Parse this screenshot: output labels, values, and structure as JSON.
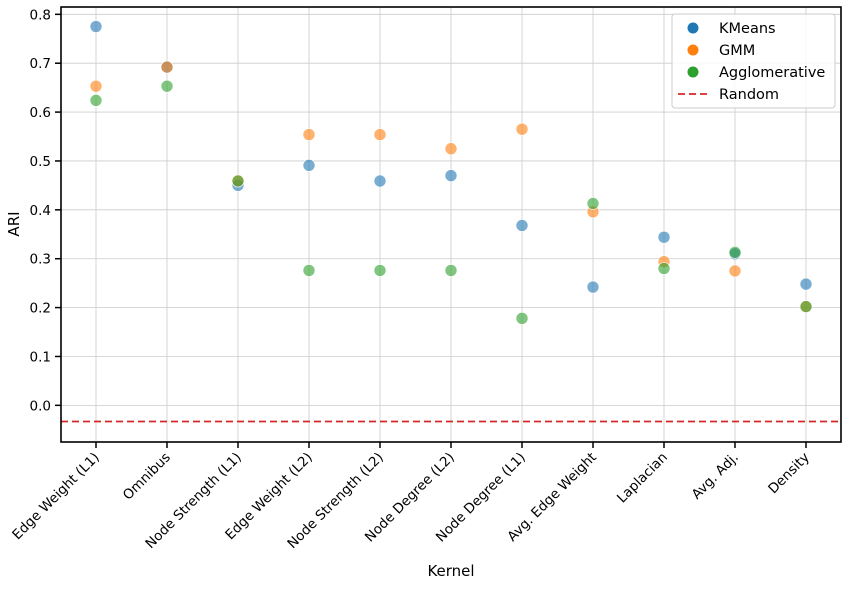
{
  "chart_data": {
    "type": "scatter",
    "xlabel": "Kernel",
    "ylabel": "ARI",
    "ylim": [
      -0.075,
      0.815
    ],
    "yticks": [
      0.0,
      0.1,
      0.2,
      0.3,
      0.4,
      0.5,
      0.6,
      0.7,
      0.8
    ],
    "grid": true,
    "legend_position": "top-right",
    "categories": [
      "Edge Weight (L1)",
      "Omnibus",
      "Node Strength (L1)",
      "Edge Weight (L2)",
      "Node Strength (L2)",
      "Node Degree (L2)",
      "Node Degree (L1)",
      "Avg. Edge Weight",
      "Laplacian",
      "Avg. Adj.",
      "Density"
    ],
    "series": [
      {
        "name": "KMeans",
        "color": "#1f77b4",
        "values": [
          0.775,
          0.692,
          0.45,
          0.491,
          0.459,
          0.47,
          0.368,
          0.242,
          0.344,
          0.31,
          0.248
        ]
      },
      {
        "name": "GMM",
        "color": "#ff7f0e",
        "values": [
          0.653,
          0.692,
          0.459,
          0.554,
          0.554,
          0.525,
          0.565,
          0.396,
          0.294,
          0.275,
          0.202
        ]
      },
      {
        "name": "Agglomerative",
        "color": "#2ca02c",
        "values": [
          0.624,
          0.653,
          0.459,
          0.276,
          0.276,
          0.276,
          0.178,
          0.413,
          0.28,
          0.313,
          0.202
        ]
      }
    ],
    "baseline": {
      "name": "Random",
      "value": -0.033,
      "color": "#d62728",
      "style": "dashed"
    }
  }
}
